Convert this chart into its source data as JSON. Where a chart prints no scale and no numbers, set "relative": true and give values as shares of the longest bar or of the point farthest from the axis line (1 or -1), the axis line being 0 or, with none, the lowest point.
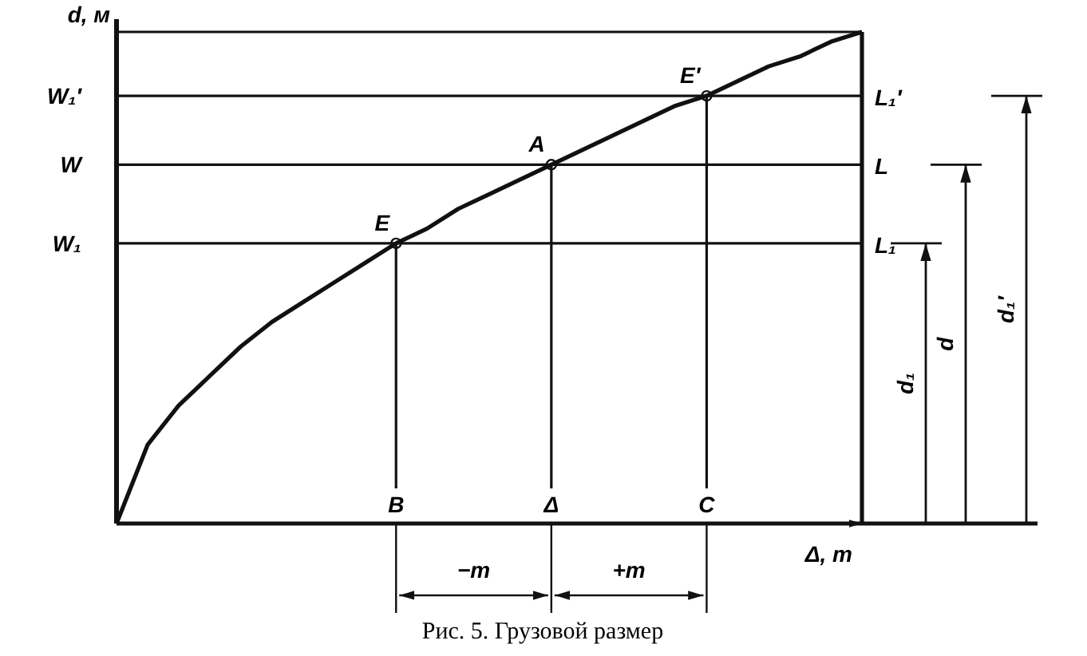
{
  "chart_data": {
    "type": "line",
    "relative": true,
    "ylabel": "d, м",
    "xlabel": "Δ, т",
    "line_style": "solid",
    "categories": [
      null,
      null,
      null,
      null,
      null,
      null,
      null,
      null,
      null,
      "B",
      null,
      null,
      null,
      null,
      "Δ",
      null,
      null,
      null,
      null,
      "C",
      null,
      null,
      null,
      null,
      null
    ],
    "series": [
      {
        "color": "#111111",
        "values": [
          0,
          0.16,
          0.24,
          0.3,
          0.36,
          0.41,
          0.45,
          0.49,
          0.53,
          0.57,
          0.6,
          0.64,
          0.67,
          0.7,
          0.73,
          0.76,
          0.79,
          0.82,
          0.85,
          0.87,
          0.9,
          0.93,
          0.95,
          0.98,
          1
        ]
      }
    ],
    "ref_lines": [
      {
        "axis": "y",
        "value": 0.57,
        "label": "W₁"
      },
      {
        "axis": "y",
        "value": 0.73,
        "label": "W"
      },
      {
        "axis": "y",
        "value": 0.87,
        "label": "W₁′"
      },
      {
        "axis": "x",
        "value": "B"
      },
      {
        "axis": "x",
        "value": "Δ"
      },
      {
        "axis": "x",
        "value": "C"
      }
    ],
    "annotations": [
      {
        "text": "E",
        "x": "B",
        "y": 0.57
      },
      {
        "text": "A",
        "x": "Δ",
        "y": 0.73
      },
      {
        "text": "E′",
        "x": "C",
        "y": 0.87
      },
      "L₁",
      "L",
      "L₁′",
      "d₁",
      "d",
      "d₁′",
      "−m",
      "+m",
      "Рис. 5. Грузовой размер"
    ]
  }
}
